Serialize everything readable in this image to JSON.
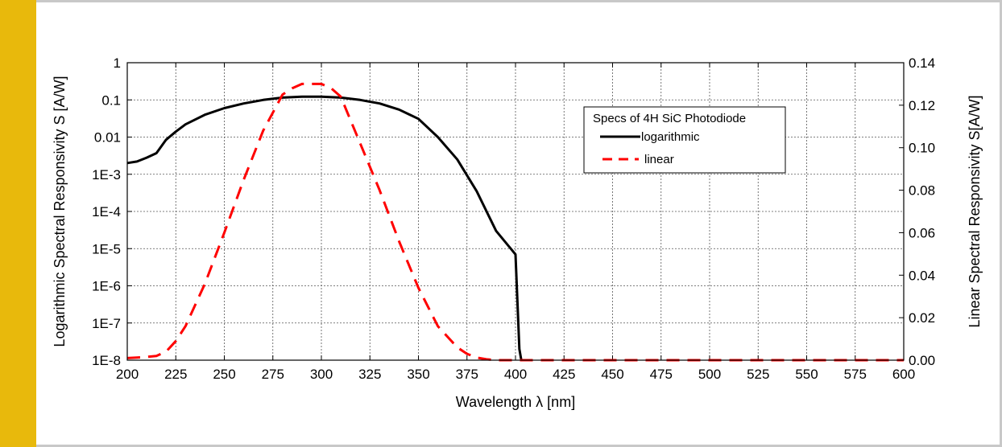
{
  "colors": {
    "accent": "#e8b90c",
    "frame": "#c8c8c8",
    "series_log": "#000000",
    "series_lin": "#ff0000"
  },
  "chart_data": {
    "type": "line",
    "title": "",
    "xlabel": "Wavelength λ [nm]",
    "ylabel_left": "Logarithmic Spectral Responsivity S [A/W]",
    "ylabel_right": "Linear Spectral Responsivity S[A/W]",
    "xlim": [
      200,
      600
    ],
    "ylim_left": [
      1e-08,
      1
    ],
    "yscale_left": "log",
    "ylim_right": [
      0,
      0.14
    ],
    "yscale_right": "linear",
    "grid": true,
    "legend_position": "upper-right",
    "x_ticks": [
      "200",
      "225",
      "250",
      "275",
      "300",
      "325",
      "350",
      "375",
      "400",
      "425",
      "450",
      "475",
      "500",
      "525",
      "550",
      "575",
      "600"
    ],
    "y_left_ticks": [
      "1E-8",
      "1E-7",
      "1E-6",
      "1E-5",
      "1E-4",
      "1E-3",
      "0.01",
      "0.1",
      "1"
    ],
    "y_right_ticks": [
      "0.00",
      "0.02",
      "0.04",
      "0.06",
      "0.08",
      "0.10",
      "0.12",
      "0.14"
    ],
    "legend": {
      "title": "Specs of 4H SiC Photodiode",
      "entries": [
        "logarithmic",
        "linear"
      ]
    },
    "series": [
      {
        "name": "logarithmic",
        "axis": "left",
        "style": "solid",
        "x": [
          200,
          205,
          210,
          215,
          220,
          225,
          230,
          240,
          250,
          260,
          270,
          280,
          290,
          300,
          310,
          320,
          330,
          340,
          350,
          360,
          370,
          380,
          390,
          400,
          402,
          403
        ],
        "y": [
          0.002,
          0.0022,
          0.0028,
          0.0037,
          0.0085,
          0.014,
          0.022,
          0.04,
          0.06,
          0.08,
          0.1,
          0.115,
          0.122,
          0.122,
          0.115,
          0.1,
          0.08,
          0.055,
          0.031,
          0.01,
          0.0025,
          0.00035,
          3e-05,
          7e-06,
          2e-08,
          1e-08
        ]
      },
      {
        "name": "linear",
        "axis": "right",
        "style": "dashed",
        "x": [
          200,
          205,
          210,
          215,
          220,
          225,
          230,
          240,
          250,
          260,
          270,
          280,
          285,
          290,
          295,
          300,
          305,
          310,
          320,
          330,
          340,
          350,
          360,
          370,
          375,
          380,
          385,
          390,
          400,
          410,
          450,
          500,
          550,
          600
        ],
        "y": [
          0.001,
          0.0012,
          0.0015,
          0.002,
          0.004,
          0.009,
          0.016,
          0.036,
          0.06,
          0.085,
          0.108,
          0.125,
          0.128,
          0.13,
          0.13,
          0.13,
          0.128,
          0.124,
          0.102,
          0.08,
          0.056,
          0.034,
          0.016,
          0.006,
          0.003,
          0.0012,
          0.0004,
          0.0,
          0.0,
          0.0,
          0.0,
          0.0,
          0.0,
          0.0
        ]
      }
    ]
  }
}
